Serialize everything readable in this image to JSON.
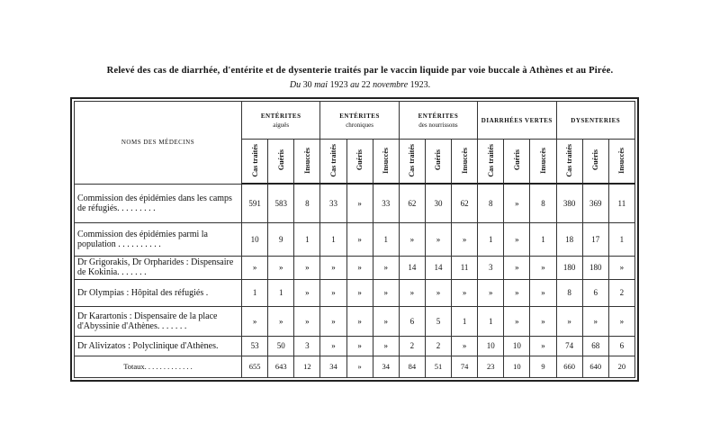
{
  "title": "Relevé des cas de diarrhée, d'entérite et de dysenterie traités par le vaccin liquide par voie buccale à Athènes et au Pirée.",
  "subtitle": {
    "prefix": "Du",
    "d1": "30",
    "m1": "mai",
    "y1": "1923",
    "mid": "au",
    "d2": "22",
    "m2": "novembre",
    "y2": "1923."
  },
  "table": {
    "name_header": "NOMS DES MÉDECINS",
    "groups": [
      {
        "l1": "ENTÉRITES",
        "l2": "aiguës"
      },
      {
        "l1": "ENTÉRITES",
        "l2": "chroniques"
      },
      {
        "l1": "ENTÉRITES",
        "l2": "des nourrissons"
      },
      {
        "l1": "DIARRHÉES VERTES",
        "l2": ""
      },
      {
        "l1": "DYSENTERIES",
        "l2": ""
      }
    ],
    "subheaders": [
      "Cas traités",
      "Guéris",
      "Insuccès"
    ],
    "rows": [
      {
        "name": "Commission des épidémies dans les camps de réfugiés. . . . . . . . .",
        "values": [
          "591",
          "583",
          "8",
          "33",
          "»",
          "33",
          "62",
          "30",
          "62",
          "8",
          "»",
          "8",
          "380",
          "369",
          "11"
        ]
      },
      {
        "name": "Commission des épidémies parmi la population . . . . . . . . . .",
        "values": [
          "10",
          "9",
          "1",
          "1",
          "»",
          "1",
          "»",
          "»",
          "»",
          "1",
          "»",
          "1",
          "18",
          "17",
          "1"
        ]
      },
      {
        "name": "Dr Grigorakis, Dr Orpharides : Dispensaire de Kokinia. . . . . . .",
        "values": [
          "»",
          "»",
          "»",
          "»",
          "»",
          "»",
          "14",
          "14",
          "11",
          "3",
          "»",
          "»",
          "180",
          "180",
          "»"
        ]
      },
      {
        "name": "Dr Olympias : Hôpital des réfugiés .",
        "values": [
          "1",
          "1",
          "»",
          "»",
          "»",
          "»",
          "»",
          "»",
          "»",
          "»",
          "»",
          "»",
          "8",
          "6",
          "2"
        ]
      },
      {
        "name": "Dr Karartonis : Dispensaire de la place d'Abyssinie d'Athènes. . . . . . .",
        "values": [
          "»",
          "»",
          "»",
          "»",
          "»",
          "»",
          "6",
          "5",
          "1",
          "1",
          "»",
          "»",
          "»",
          "»",
          "»"
        ]
      },
      {
        "name": "Dr Alivizatos : Polyclinique d'Athènes.",
        "values": [
          "53",
          "50",
          "3",
          "»",
          "»",
          "»",
          "2",
          "2",
          "»",
          "10",
          "10",
          "»",
          "74",
          "68",
          "6"
        ]
      },
      {
        "name": "Totaux. . . . . . . . . . . . .",
        "values": [
          "655",
          "643",
          "12",
          "34",
          "»",
          "34",
          "84",
          "51",
          "74",
          "23",
          "10",
          "9",
          "660",
          "640",
          "20"
        ]
      }
    ]
  }
}
